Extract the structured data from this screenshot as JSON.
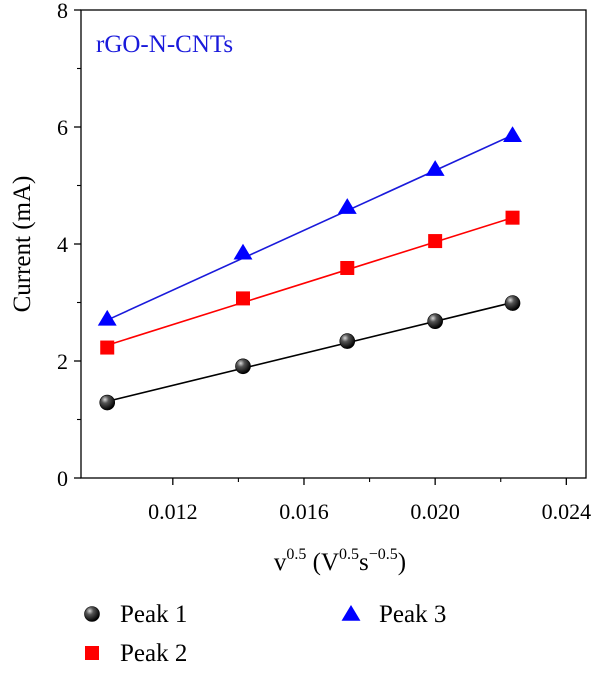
{
  "chart_data": {
    "type": "scatter",
    "title": "",
    "annotation": "rGO-N-CNTs",
    "annotation_color": "#1a1adb",
    "xlabel": {
      "base": "v",
      "base_sup": "0.5",
      "unit_open": " (V",
      "unit_sup1": "0.5",
      "unit_mid": "s",
      "unit_sup2": "−0.5",
      "unit_close": ")"
    },
    "ylabel": "Current (mA)",
    "xlim": [
      0.0092,
      0.0246
    ],
    "ylim": [
      0,
      8
    ],
    "xticks": [
      0.012,
      0.016,
      0.02,
      0.024
    ],
    "xtick_labels": [
      "0.012",
      "0.016",
      "0.020",
      "0.024"
    ],
    "yticks": [
      0,
      2,
      4,
      6,
      8
    ],
    "ytick_labels": [
      "0",
      "2",
      "4",
      "6",
      "8"
    ],
    "grid": false,
    "legend_position": "bottom-outside",
    "series": [
      {
        "name": "Peak 1",
        "marker": "circle",
        "color": "#000000",
        "line_color": "#000000",
        "x": [
          0.01,
          0.01414,
          0.01732,
          0.02,
          0.02236
        ],
        "y": [
          1.29,
          1.91,
          2.34,
          2.68,
          2.99
        ],
        "fit": [
          [
            0.01,
            1.31
          ],
          [
            0.02236,
            3.0
          ]
        ]
      },
      {
        "name": "Peak 2",
        "marker": "square",
        "color": "#ff0000",
        "line_color": "#ff0000",
        "x": [
          0.01,
          0.01414,
          0.01732,
          0.02,
          0.02236
        ],
        "y": [
          2.23,
          3.07,
          3.59,
          4.05,
          4.45
        ],
        "fit": [
          [
            0.01,
            2.27
          ],
          [
            0.02236,
            4.45
          ]
        ]
      },
      {
        "name": "Peak 3",
        "marker": "triangle",
        "color": "#0000ff",
        "line_color": "#1a1adb",
        "x": [
          0.01,
          0.01414,
          0.01732,
          0.02,
          0.02236
        ],
        "y": [
          2.72,
          3.85,
          4.63,
          5.28,
          5.86
        ],
        "fit": [
          [
            0.01,
            2.7
          ],
          [
            0.02236,
            5.86
          ]
        ]
      }
    ]
  }
}
